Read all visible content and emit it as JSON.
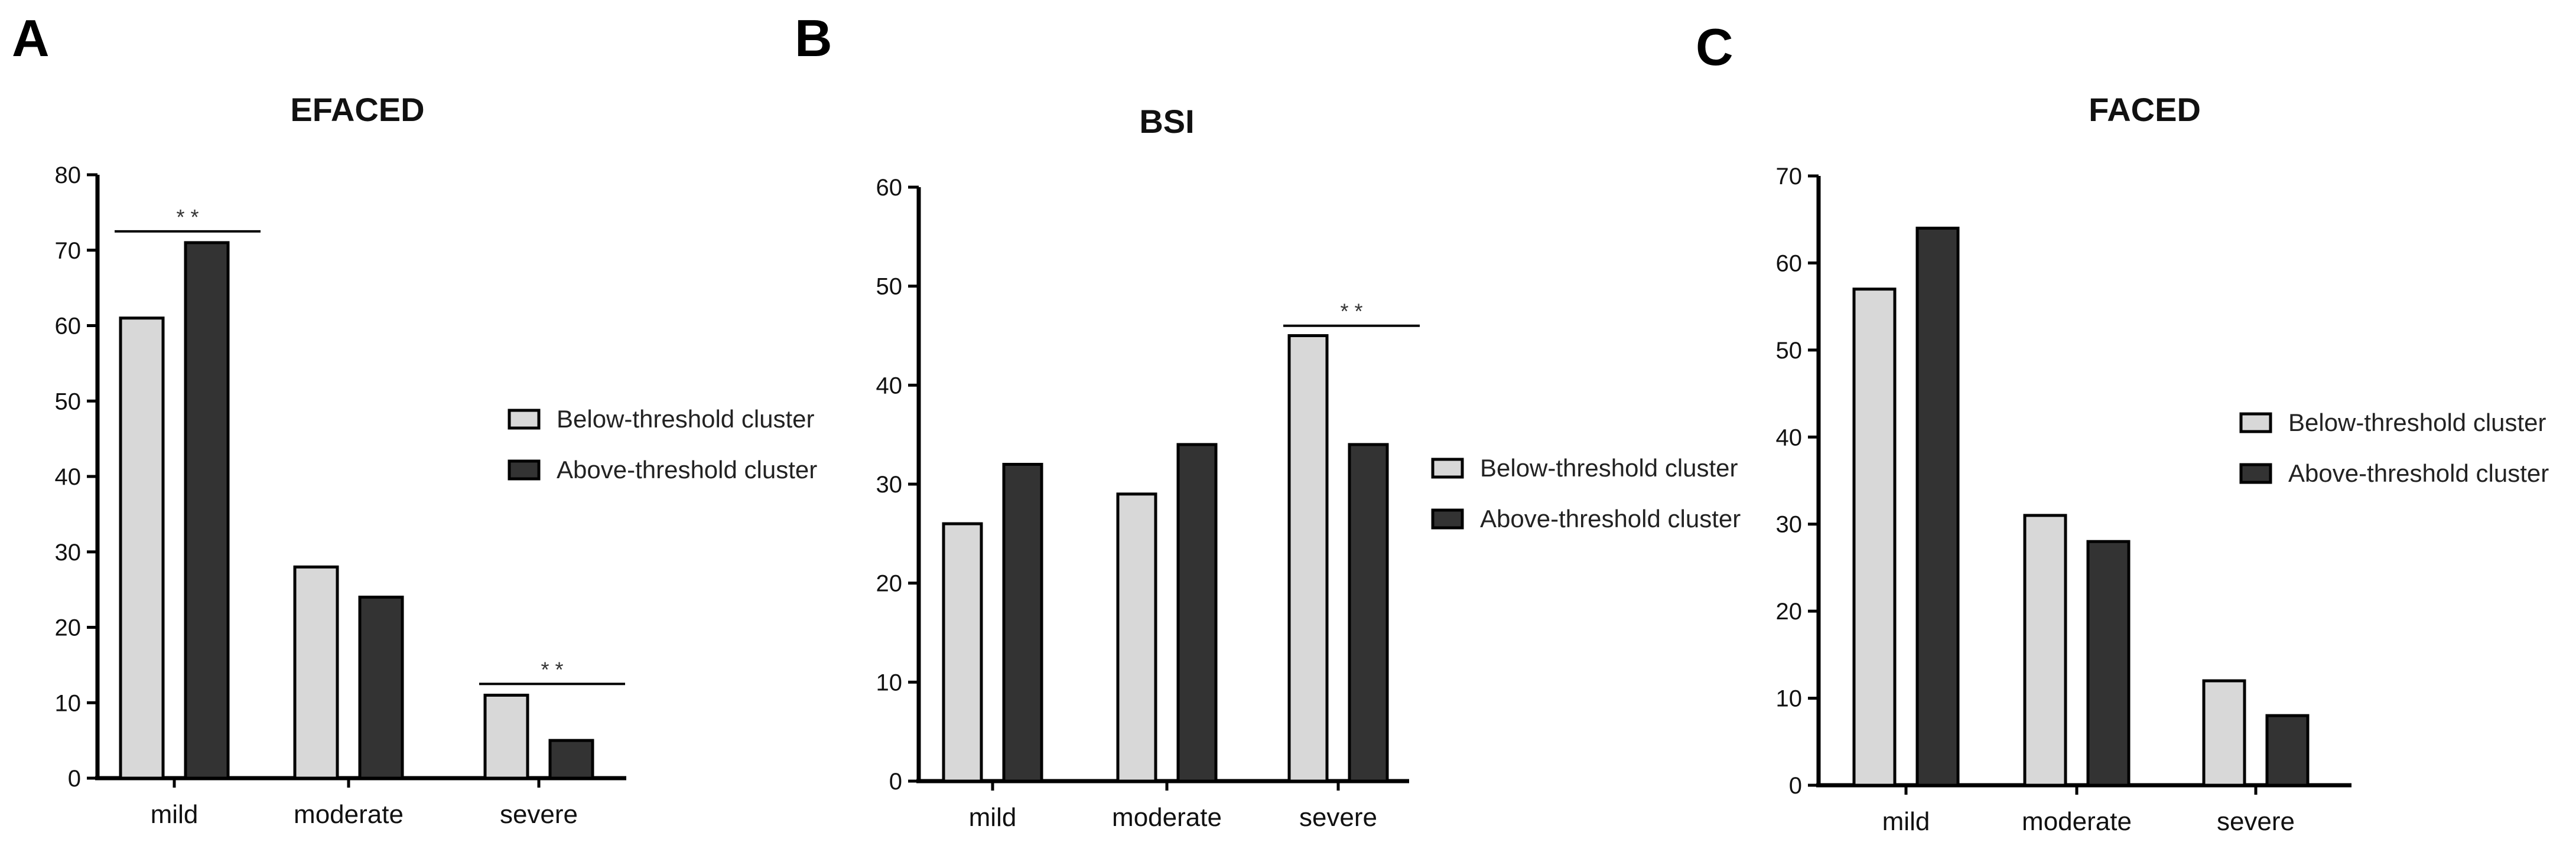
{
  "colors": {
    "below": "#d8d8d8",
    "above": "#333333",
    "stroke": "#000000"
  },
  "chart_data": [
    {
      "panel": "A",
      "type": "bar",
      "title": "EFACED",
      "categories": [
        "mild",
        "moderate",
        "severe"
      ],
      "series": [
        {
          "name": "Below-threshold cluster",
          "values": [
            61,
            28,
            11
          ]
        },
        {
          "name": "Above-threshold cluster",
          "values": [
            71,
            24,
            5
          ]
        }
      ],
      "ylim": [
        0,
        80
      ],
      "yticks": [
        0,
        10,
        20,
        30,
        40,
        50,
        60,
        70,
        80
      ],
      "significance": [
        {
          "category": "mild",
          "label": "* *",
          "y": 72.5
        },
        {
          "category": "severe",
          "label": "* *",
          "y": 12.5
        }
      ],
      "legend_position": "right"
    },
    {
      "panel": "B",
      "type": "bar",
      "title": "BSI",
      "categories": [
        "mild",
        "moderate",
        "severe"
      ],
      "series": [
        {
          "name": "Below-threshold cluster",
          "values": [
            26,
            29,
            45
          ]
        },
        {
          "name": "Above-threshold cluster",
          "values": [
            32,
            34,
            34
          ]
        }
      ],
      "ylim": [
        0,
        60
      ],
      "yticks": [
        0,
        10,
        20,
        30,
        40,
        50,
        60
      ],
      "significance": [
        {
          "category": "severe",
          "label": "* *",
          "y": 46
        }
      ],
      "legend_position": "right"
    },
    {
      "panel": "C",
      "type": "bar",
      "title": "FACED",
      "categories": [
        "mild",
        "moderate",
        "severe"
      ],
      "series": [
        {
          "name": "Below-threshold cluster",
          "values": [
            57,
            31,
            12
          ]
        },
        {
          "name": "Above-threshold cluster",
          "values": [
            64,
            28,
            8
          ]
        }
      ],
      "ylim": [
        0,
        70
      ],
      "yticks": [
        0,
        10,
        20,
        30,
        40,
        50,
        60,
        70
      ],
      "significance": [],
      "legend_position": "right"
    }
  ]
}
